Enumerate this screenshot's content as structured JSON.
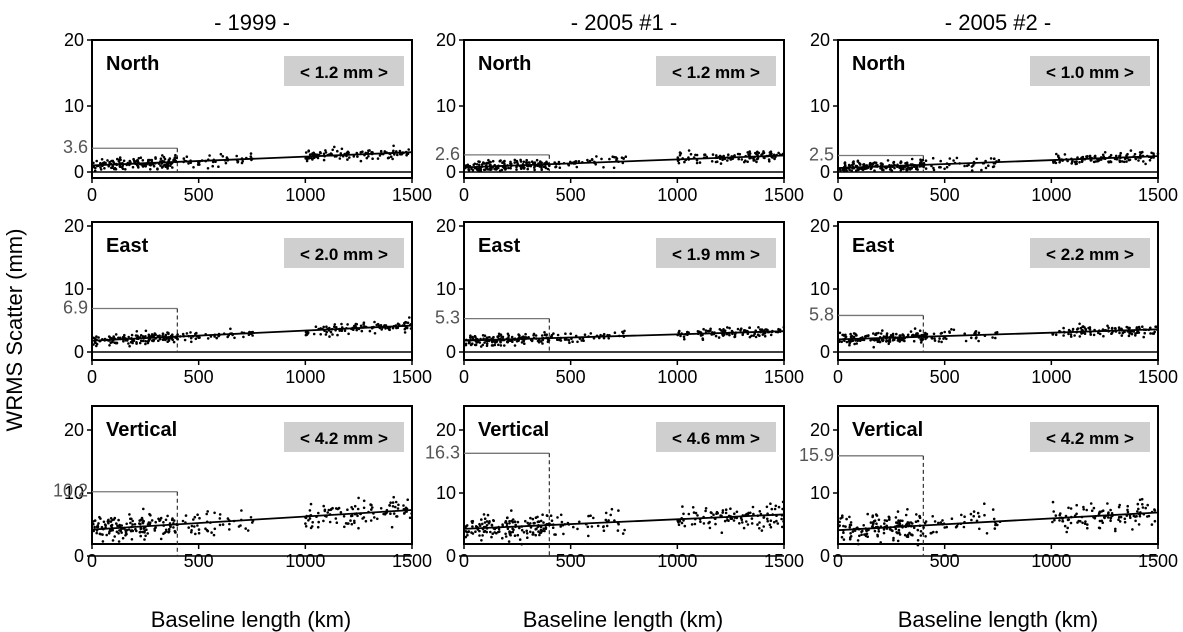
{
  "figure": {
    "ylabel": "WRMS Scatter (mm)",
    "xlabel": "Baseline length (km)"
  },
  "chart_data": [
    {
      "type": "scatter",
      "column": "- 1999 -",
      "component": "North",
      "badge": "< 1.2 mm >",
      "short_baseline_mean": "3.6",
      "xlim": [
        0,
        1500
      ],
      "ylim": [
        0,
        20
      ],
      "yticks": [
        0,
        10,
        20
      ],
      "xticks": [
        0,
        500,
        1000,
        1500
      ],
      "fit": [
        1.0,
        3.0
      ]
    },
    {
      "type": "scatter",
      "column": "- 2005 #1 -",
      "component": "North",
      "badge": "< 1.2 mm >",
      "short_baseline_mean": "2.6",
      "xlim": [
        0,
        1500
      ],
      "ylim": [
        0,
        20
      ],
      "yticks": [
        0,
        10,
        20
      ],
      "xticks": [
        0,
        500,
        1000,
        1500
      ],
      "fit": [
        0.7,
        2.5
      ]
    },
    {
      "type": "scatter",
      "column": "- 2005 #2 -",
      "component": "North",
      "badge": "< 1.0 mm >",
      "short_baseline_mean": "2.5",
      "xlim": [
        0,
        1500
      ],
      "ylim": [
        0,
        20
      ],
      "yticks": [
        0,
        10,
        20
      ],
      "xticks": [
        0,
        500,
        1000,
        1500
      ],
      "fit": [
        0.6,
        2.4
      ]
    },
    {
      "type": "scatter",
      "column": "- 1999 -",
      "component": "East",
      "badge": "< 2.0 mm >",
      "short_baseline_mean": "6.9",
      "xlim": [
        0,
        1500
      ],
      "ylim": [
        0,
        20
      ],
      "yticks": [
        0,
        10,
        20
      ],
      "xticks": [
        0,
        500,
        1000,
        1500
      ],
      "fit": [
        1.8,
        4.2
      ]
    },
    {
      "type": "scatter",
      "column": "- 2005 #1 -",
      "component": "East",
      "badge": "< 1.9 mm >",
      "short_baseline_mean": "5.3",
      "xlim": [
        0,
        1500
      ],
      "ylim": [
        0,
        20
      ],
      "yticks": [
        0,
        10,
        20
      ],
      "xticks": [
        0,
        500,
        1000,
        1500
      ],
      "fit": [
        1.8,
        3.3
      ]
    },
    {
      "type": "scatter",
      "column": "- 2005 #2 -",
      "component": "East",
      "badge": "< 2.2 mm >",
      "short_baseline_mean": "5.8",
      "xlim": [
        0,
        1500
      ],
      "ylim": [
        0,
        20
      ],
      "yticks": [
        0,
        10,
        20
      ],
      "xticks": [
        0,
        500,
        1000,
        1500
      ],
      "fit": [
        2.0,
        3.6
      ]
    },
    {
      "type": "scatter",
      "column": "- 1999 -",
      "component": "Vertical",
      "badge": "< 4.2 mm >",
      "short_baseline_mean": "10.2",
      "xlim": [
        0,
        1500
      ],
      "ylim": [
        0,
        20
      ],
      "yticks": [
        0,
        10,
        20
      ],
      "xticks": [
        0,
        500,
        1000,
        1500
      ],
      "fit": [
        4.2,
        7.3
      ]
    },
    {
      "type": "scatter",
      "column": "- 2005 #1 -",
      "component": "Vertical",
      "badge": "< 4.6 mm >",
      "short_baseline_mean": "16.3",
      "xlim": [
        0,
        1500
      ],
      "ylim": [
        0,
        20
      ],
      "yticks": [
        0,
        10,
        20
      ],
      "xticks": [
        0,
        500,
        1000,
        1500
      ],
      "fit": [
        4.3,
        6.6
      ]
    },
    {
      "type": "scatter",
      "column": "- 2005 #2 -",
      "component": "Vertical",
      "badge": "< 4.2 mm >",
      "short_baseline_mean": "15.9",
      "xlim": [
        0,
        1500
      ],
      "ylim": [
        0,
        20
      ],
      "yticks": [
        0,
        10,
        20
      ],
      "xticks": [
        0,
        500,
        1000,
        1500
      ],
      "fit": [
        4.1,
        6.9
      ]
    }
  ]
}
